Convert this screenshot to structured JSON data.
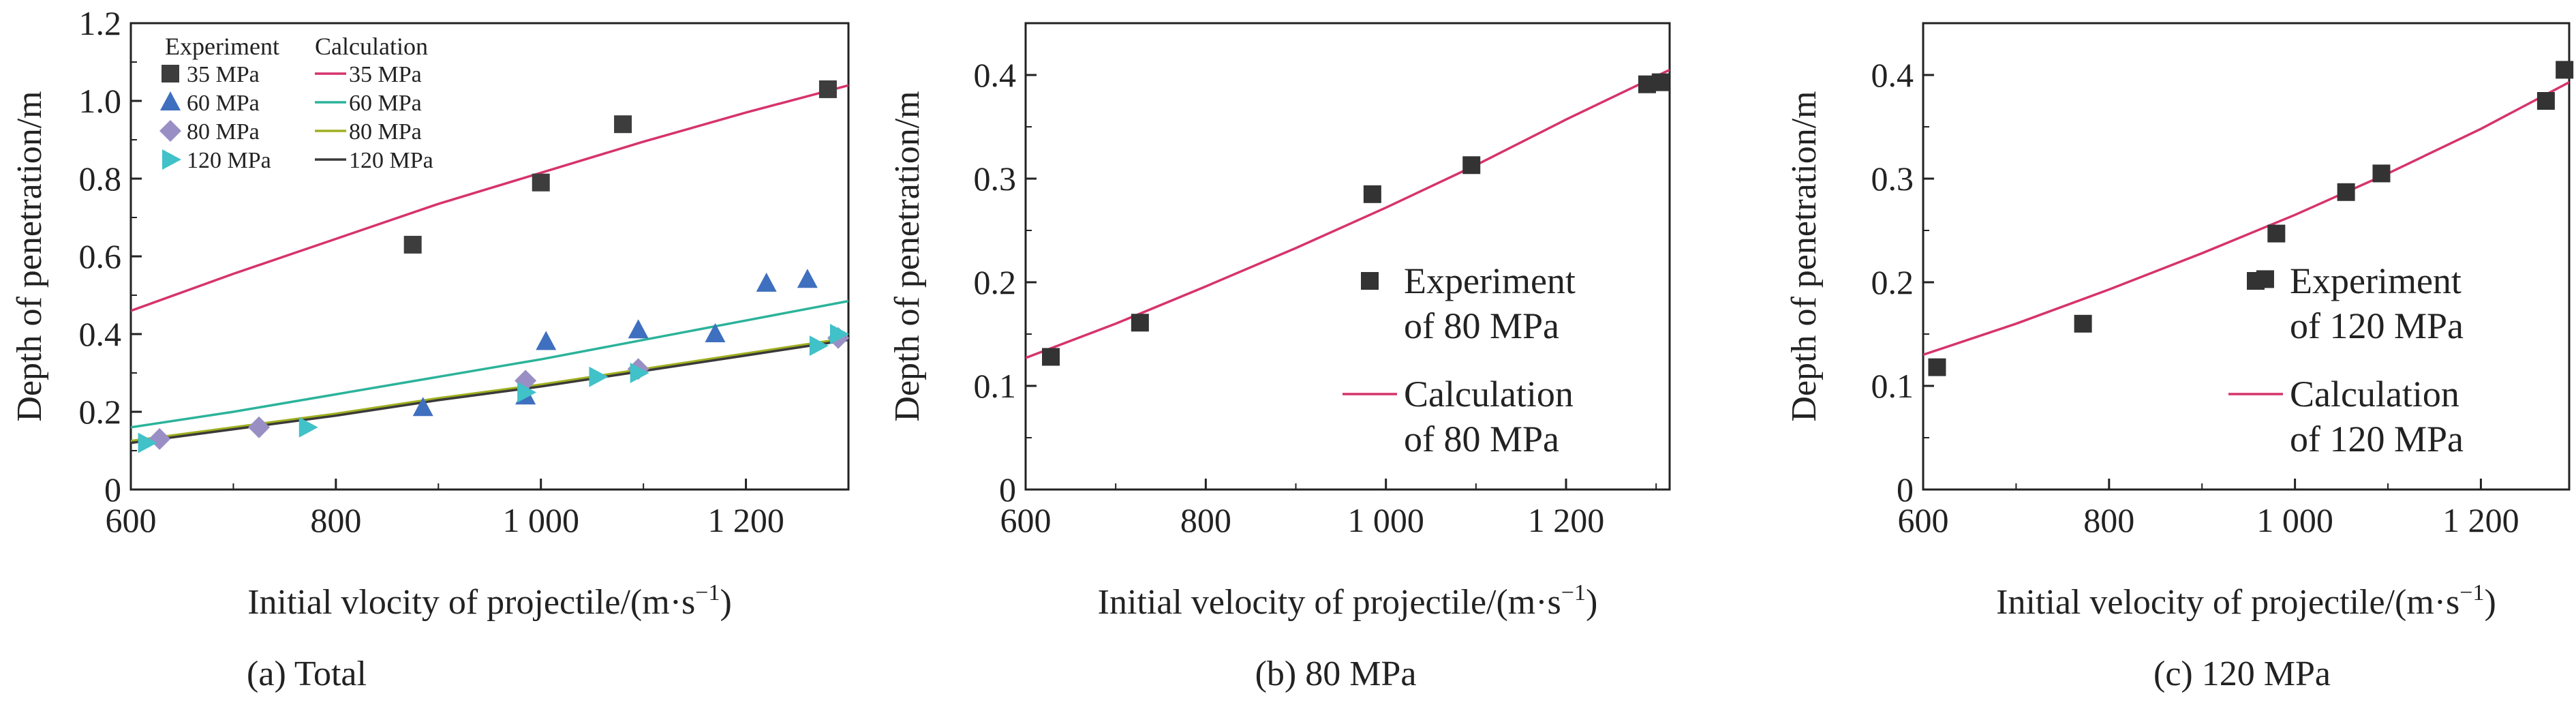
{
  "colors": {
    "axis": "#222222",
    "series": {
      "35 MPa": "#3d3d3d",
      "60 MPa": "#3f6fbf",
      "80 MPa": "#9a8fc4",
      "120 MPa": "#41c1c8"
    },
    "lines": {
      "35 MPa": "#d6336c",
      "60 MPa": "#2bb39a",
      "80 MPa": "#a0b020",
      "120 MPa": "#3a3a3a"
    },
    "single_exp": "#333333",
    "single_calc": "#d6336c"
  },
  "chart_data": [
    {
      "type": "scatter",
      "caption": "(a) Total",
      "xlabel": "Initial vlocity of projectile/(m·s⁻¹)",
      "ylabel": "Depth of penetration/m",
      "xlim": [
        600,
        1300
      ],
      "ylim": [
        0,
        1.2
      ],
      "xticks": [
        600,
        800,
        1000,
        1200
      ],
      "xtick_labels": [
        "600",
        "800",
        "1 000",
        "1 200"
      ],
      "yticks": [
        0,
        0.2,
        0.4,
        0.6,
        0.8,
        1.0,
        1.2
      ],
      "ytick_labels": [
        "0",
        "0.2",
        "0.4",
        "0.6",
        "0.8",
        "1.0",
        "1.2"
      ],
      "legend": {
        "position": "top-left",
        "experiment_title": "Experiment",
        "calculation_title": "Calculation",
        "entries": [
          "35 MPa",
          "60 MPa",
          "80 MPa",
          "120 MPa"
        ]
      },
      "series": [
        {
          "name": "35 MPa",
          "kind": "experiment",
          "marker": "square",
          "x": [
            875,
            1000,
            1080,
            1280
          ],
          "y": [
            0.63,
            0.79,
            0.94,
            1.03
          ]
        },
        {
          "name": "60 MPa",
          "kind": "experiment",
          "marker": "triangle-up",
          "x": [
            885,
            985,
            1005,
            1095,
            1170,
            1220,
            1260
          ],
          "y": [
            0.21,
            0.24,
            0.38,
            0.41,
            0.4,
            0.53,
            0.54
          ]
        },
        {
          "name": "80 MPa",
          "kind": "experiment",
          "marker": "diamond",
          "x": [
            628,
            725,
            985,
            1095,
            1290
          ],
          "y": [
            0.13,
            0.16,
            0.28,
            0.31,
            0.39
          ]
        },
        {
          "name": "120 MPa",
          "kind": "experiment",
          "marker": "triangle-right",
          "x": [
            615,
            772,
            985,
            1055,
            1095,
            1270,
            1290
          ],
          "y": [
            0.12,
            0.16,
            0.25,
            0.29,
            0.3,
            0.37,
            0.4
          ]
        },
        {
          "name": "35 MPa",
          "kind": "calculation",
          "x": [
            600,
            700,
            800,
            900,
            1000,
            1100,
            1200,
            1300
          ],
          "y": [
            0.46,
            0.555,
            0.645,
            0.735,
            0.815,
            0.895,
            0.97,
            1.04
          ]
        },
        {
          "name": "60 MPa",
          "kind": "calculation",
          "x": [
            600,
            700,
            800,
            900,
            1000,
            1100,
            1200,
            1300
          ],
          "y": [
            0.16,
            0.2,
            0.245,
            0.29,
            0.335,
            0.385,
            0.435,
            0.485
          ]
        },
        {
          "name": "80 MPa",
          "kind": "calculation",
          "x": [
            600,
            700,
            800,
            900,
            1000,
            1100,
            1200,
            1300
          ],
          "y": [
            0.125,
            0.16,
            0.195,
            0.235,
            0.27,
            0.31,
            0.35,
            0.39
          ]
        },
        {
          "name": "120 MPa",
          "kind": "calculation",
          "x": [
            600,
            700,
            800,
            900,
            1000,
            1100,
            1200,
            1300
          ],
          "y": [
            0.12,
            0.155,
            0.19,
            0.23,
            0.265,
            0.305,
            0.345,
            0.385
          ]
        }
      ]
    },
    {
      "type": "scatter",
      "caption": "(b) 80 MPa",
      "xlabel": "Initial velocity of projectile/(m·s⁻¹)",
      "ylabel": "Depth of penetration/m",
      "xlim": [
        600,
        1315
      ],
      "ylim": [
        0,
        0.45
      ],
      "xticks": [
        600,
        800,
        1000,
        1200
      ],
      "xtick_labels": [
        "600",
        "800",
        "1 000",
        "1 200"
      ],
      "yticks": [
        0,
        0.1,
        0.2,
        0.3,
        0.4
      ],
      "ytick_labels": [
        "0",
        "0.1",
        "0.2",
        "0.3",
        "0.4"
      ],
      "legend": {
        "position": "center-right",
        "entries": [
          [
            "Experiment",
            "of 80 MPa"
          ],
          [
            "Calculation",
            "of 80 MPa"
          ]
        ]
      },
      "series": [
        {
          "name": "Experiment of 80 MPa",
          "kind": "experiment",
          "marker": "square",
          "x": [
            628,
            727,
            985,
            1095,
            1290,
            1305
          ],
          "y": [
            0.128,
            0.161,
            0.285,
            0.313,
            0.391,
            0.393
          ]
        },
        {
          "name": "Calculation of 80 MPa",
          "kind": "calculation",
          "x": [
            600,
            700,
            800,
            900,
            1000,
            1100,
            1200,
            1315
          ],
          "y": [
            0.127,
            0.16,
            0.196,
            0.233,
            0.272,
            0.313,
            0.357,
            0.405
          ]
        }
      ]
    },
    {
      "type": "scatter",
      "caption": "(c) 120 MPa",
      "xlabel": "Initial velocity of projectile/(m·s⁻¹)",
      "ylabel": "Depth of penetration/m",
      "xlim": [
        600,
        1295
      ],
      "ylim": [
        0,
        0.45
      ],
      "xticks": [
        600,
        800,
        1000,
        1200
      ],
      "xtick_labels": [
        "600",
        "800",
        "1 000",
        "1 200"
      ],
      "yticks": [
        0,
        0.1,
        0.2,
        0.3,
        0.4
      ],
      "ytick_labels": [
        "0",
        "0.1",
        "0.2",
        "0.3",
        "0.4"
      ],
      "legend": {
        "position": "center-right",
        "entries": [
          [
            "Experiment",
            "of 120 MPa"
          ],
          [
            "Calculation",
            "of 120 MPa"
          ]
        ]
      },
      "series": [
        {
          "name": "Experiment of 120 MPa",
          "kind": "experiment",
          "marker": "square",
          "x": [
            615,
            772,
            968,
            980,
            1055,
            1093,
            1270,
            1290
          ],
          "y": [
            0.118,
            0.16,
            0.203,
            0.247,
            0.287,
            0.305,
            0.375,
            0.405
          ]
        },
        {
          "name": "Calculation of 120 MPa",
          "kind": "calculation",
          "x": [
            600,
            700,
            800,
            900,
            1000,
            1100,
            1200,
            1295
          ],
          "y": [
            0.13,
            0.16,
            0.193,
            0.228,
            0.265,
            0.305,
            0.348,
            0.393
          ]
        }
      ]
    }
  ]
}
